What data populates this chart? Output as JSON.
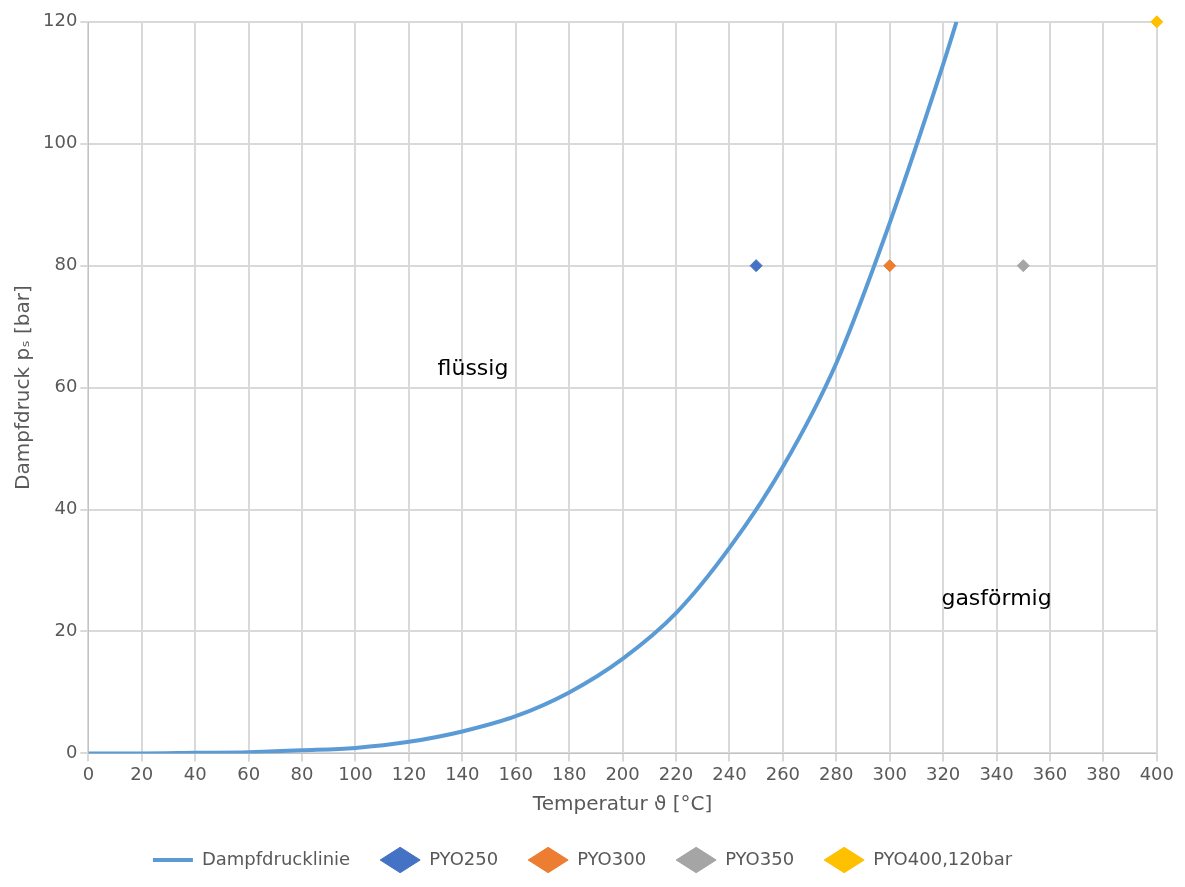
{
  "chart_data": {
    "type": "scatter",
    "xlabel": "Temperatur ϑ [°C]",
    "ylabel": "Dampfdruck pₛ [bar]",
    "xlim": [
      0,
      400
    ],
    "xticks": [
      0,
      20,
      40,
      60,
      80,
      100,
      120,
      140,
      160,
      180,
      200,
      220,
      240,
      260,
      280,
      300,
      320,
      340,
      360,
      380,
      400
    ],
    "ylim": [
      0,
      120
    ],
    "yticks": [
      0,
      20,
      40,
      60,
      80,
      100,
      120
    ],
    "grid": true,
    "legend": "bottom",
    "marker": "diamond",
    "series": [
      {
        "name": "Dampfdrucklinie",
        "type": "line",
        "marker": "none",
        "color": "#5b9bd5",
        "x": [
          0,
          20,
          40,
          60,
          80,
          100,
          120,
          140,
          160,
          180,
          200,
          220,
          240,
          260,
          280,
          300,
          320,
          325
        ],
        "values": [
          0,
          0,
          0.1,
          0.2,
          0.5,
          0.9,
          1.9,
          3.6,
          6.1,
          10,
          15.5,
          23,
          33.7,
          47,
          64,
          87,
          113,
          120
        ]
      },
      {
        "name": "PYO250",
        "color": "#4472c4",
        "x": [
          250
        ],
        "values": [
          80
        ]
      },
      {
        "name": "PYO300",
        "color": "#ed7d31",
        "x": [
          300
        ],
        "values": [
          80
        ]
      },
      {
        "name": "PYO350",
        "color": "#a5a5a5",
        "x": [
          350
        ],
        "values": [
          80
        ]
      },
      {
        "name": "PYO400,120bar",
        "color": "#ffc000",
        "x": [
          400
        ],
        "values": [
          120
        ]
      }
    ],
    "annotations": [
      "flüssig",
      "gasförmig"
    ]
  }
}
